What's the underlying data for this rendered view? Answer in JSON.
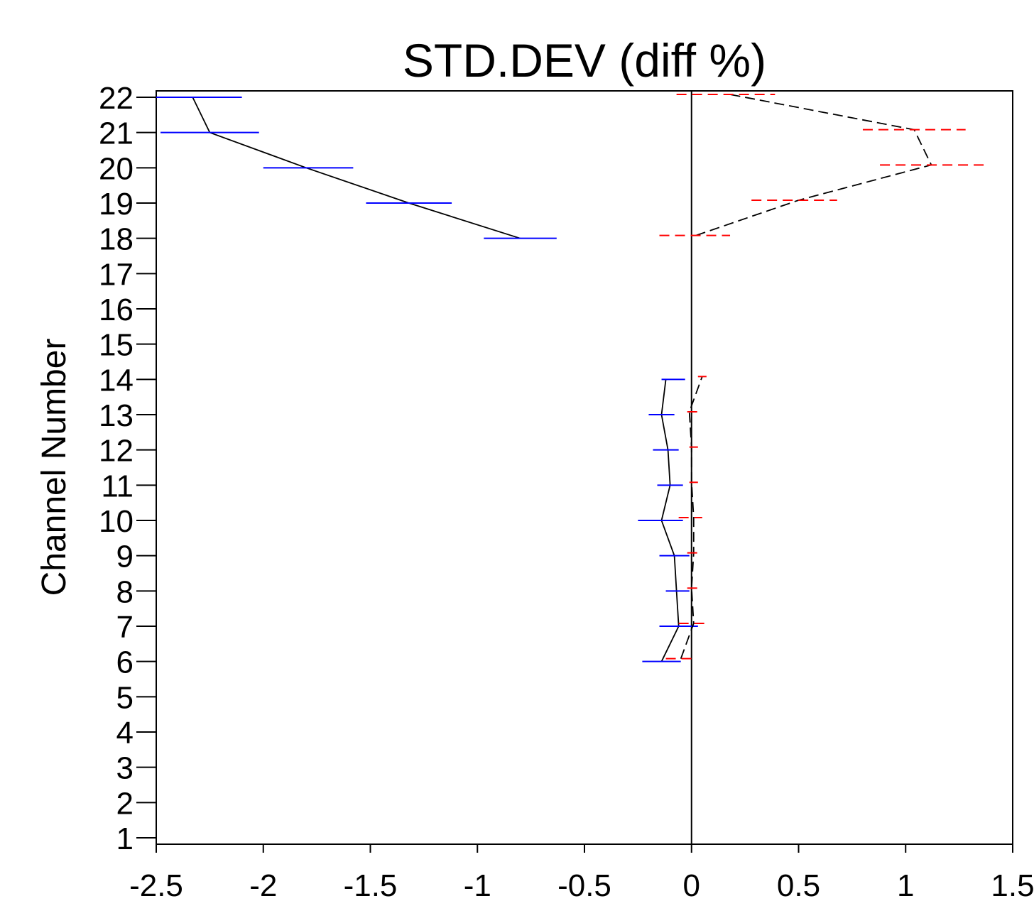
{
  "chart_data": {
    "type": "line",
    "title": "STD.DEV (diff %)",
    "xlabel": "",
    "ylabel": "Channel Number",
    "xlim": [
      -2.5,
      1.5
    ],
    "ylim": [
      1,
      22
    ],
    "xticks": [
      -2.5,
      -2,
      -1.5,
      -1,
      -0.5,
      0,
      0.5,
      1,
      1.5
    ],
    "xtick_labels": [
      "-2.5",
      "-2",
      "-1.5",
      "-1",
      "-0.5",
      "0",
      "0.5",
      "1",
      "1.5"
    ],
    "yticks": [
      1,
      2,
      3,
      4,
      5,
      6,
      7,
      8,
      9,
      10,
      11,
      12,
      13,
      14,
      15,
      16,
      17,
      18,
      19,
      20,
      21,
      22
    ],
    "ytick_labels": [
      "1",
      "2",
      "3",
      "4",
      "5",
      "6",
      "7",
      "8",
      "9",
      "10",
      "11",
      "12",
      "13",
      "14",
      "15",
      "16",
      "17",
      "18",
      "19",
      "20",
      "21",
      "22"
    ],
    "grid": false,
    "reference_line_x": 0,
    "series": [
      {
        "style": "solid",
        "line_color": "#000000",
        "error_color": "#0000ff",
        "groups": [
          {
            "channels": [
              18,
              19,
              20,
              21,
              22
            ],
            "values": [
              -0.8,
              -1.32,
              -1.8,
              -2.25,
              -2.33
            ],
            "err_low": [
              -0.97,
              -1.52,
              -2.0,
              -2.48,
              -2.5
            ],
            "err_high": [
              -0.63,
              -1.12,
              -1.58,
              -2.02,
              -2.1
            ]
          },
          {
            "channels": [
              6,
              7,
              8,
              9,
              10,
              11,
              12,
              13,
              14
            ],
            "values": [
              -0.14,
              -0.06,
              -0.07,
              -0.08,
              -0.14,
              -0.1,
              -0.11,
              -0.14,
              -0.12
            ],
            "err_low": [
              -0.23,
              -0.15,
              -0.12,
              -0.15,
              -0.25,
              -0.16,
              -0.18,
              -0.2,
              -0.14
            ],
            "err_high": [
              -0.05,
              0.03,
              -0.01,
              -0.01,
              -0.04,
              -0.04,
              -0.06,
              -0.08,
              -0.03
            ]
          }
        ]
      },
      {
        "style": "dashed",
        "line_color": "#000000",
        "error_color": "#ff0000",
        "groups": [
          {
            "channels": [
              18,
              19,
              20,
              21,
              22
            ],
            "values": [
              0.02,
              0.5,
              1.12,
              1.04,
              0.18
            ],
            "err_low": [
              -0.15,
              0.28,
              0.88,
              0.8,
              -0.07
            ],
            "err_high": [
              0.18,
              0.68,
              1.37,
              1.28,
              0.39
            ]
          },
          {
            "channels": [
              6,
              7,
              8,
              9,
              10,
              11,
              12,
              13,
              14
            ],
            "values": [
              -0.05,
              0.01,
              0.0,
              0.01,
              0.01,
              0.0,
              0.0,
              -0.01,
              0.05
            ],
            "err_low": [
              -0.12,
              -0.06,
              -0.02,
              -0.02,
              -0.06,
              -0.01,
              -0.01,
              -0.02,
              0.03
            ],
            "err_high": [
              0.02,
              0.06,
              0.03,
              0.05,
              0.05,
              0.03,
              0.03,
              0.03,
              0.07
            ]
          }
        ]
      }
    ]
  }
}
